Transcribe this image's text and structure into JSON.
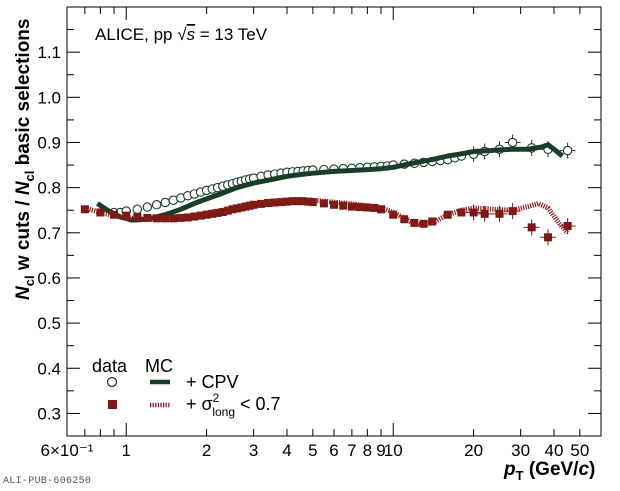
{
  "chart_data": {
    "type": "scatter",
    "annotation": "ALICE, pp  √s = 13 TeV",
    "ylabel": "N_cl w cuts / N_cl basic selections",
    "xlabel": "p_T (GeV/c)",
    "xscale": "log",
    "xlim": [
      0.6,
      60
    ],
    "ylim": [
      0.25,
      1.2
    ],
    "grid": false,
    "legend_placement": "bottom-left",
    "legend_headers": [
      "data",
      "MC"
    ],
    "x_tick_labels": [
      "6×10⁻¹",
      "1",
      "2",
      "3",
      "4",
      "5",
      "6",
      "7",
      "8",
      "9",
      "10",
      "20",
      "30",
      "40",
      "50"
    ],
    "y_tick_labels": [
      "0.3",
      "0.4",
      "0.5",
      "0.6",
      "0.7",
      "0.8",
      "0.9",
      "1.0",
      "1.1"
    ],
    "series": [
      {
        "name": "+ CPV",
        "kind": "data",
        "marker": "open-circle",
        "color": "#1a3d2a",
        "x": [
          0.9,
          0.95,
          1.0,
          1.1,
          1.2,
          1.3,
          1.4,
          1.5,
          1.6,
          1.7,
          1.8,
          1.9,
          2.0,
          2.1,
          2.2,
          2.3,
          2.4,
          2.5,
          2.6,
          2.7,
          2.8,
          2.9,
          3.0,
          3.2,
          3.4,
          3.6,
          3.8,
          4.0,
          4.2,
          4.4,
          4.6,
          4.8,
          5.0,
          5.5,
          6.0,
          6.5,
          7.0,
          7.5,
          8.0,
          8.5,
          9.0,
          9.5,
          10,
          11,
          12,
          13,
          14,
          15,
          16,
          17,
          18,
          20,
          22,
          25,
          28,
          33,
          38,
          45
        ],
        "y": [
          0.745,
          0.745,
          0.748,
          0.752,
          0.757,
          0.762,
          0.767,
          0.772,
          0.777,
          0.782,
          0.786,
          0.79,
          0.794,
          0.797,
          0.8,
          0.803,
          0.806,
          0.809,
          0.812,
          0.814,
          0.817,
          0.819,
          0.821,
          0.825,
          0.828,
          0.83,
          0.832,
          0.834,
          0.835,
          0.836,
          0.837,
          0.838,
          0.839,
          0.84,
          0.841,
          0.842,
          0.843,
          0.844,
          0.845,
          0.846,
          0.847,
          0.848,
          0.85,
          0.852,
          0.854,
          0.856,
          0.858,
          0.86,
          0.862,
          0.866,
          0.87,
          0.874,
          0.88,
          0.885,
          0.9,
          0.888,
          0.885,
          0.882
        ]
      },
      {
        "name": "+ CPV",
        "kind": "MC",
        "line": "solid-thick",
        "color": "#1a3d2a",
        "x": [
          0.78,
          0.85,
          0.95,
          1.05,
          1.2,
          1.4,
          1.6,
          1.8,
          2.0,
          2.3,
          2.6,
          3.0,
          3.5,
          4.0,
          4.5,
          5.0,
          6.0,
          7.0,
          8.0,
          9.0,
          10,
          12,
          14,
          16,
          18,
          20,
          24,
          28,
          32,
          36,
          38,
          40,
          43
        ],
        "y": [
          0.765,
          0.75,
          0.735,
          0.728,
          0.73,
          0.74,
          0.752,
          0.765,
          0.775,
          0.788,
          0.8,
          0.81,
          0.818,
          0.825,
          0.829,
          0.832,
          0.836,
          0.838,
          0.84,
          0.842,
          0.845,
          0.855,
          0.862,
          0.87,
          0.875,
          0.88,
          0.883,
          0.885,
          0.885,
          0.89,
          0.895,
          0.885,
          0.87
        ]
      },
      {
        "name": "+ σ²_long < 0.7",
        "kind": "data",
        "marker": "filled-square",
        "color": "#7a1a16",
        "x": [
          0.7,
          0.8,
          0.9,
          1.0,
          1.1,
          1.2,
          1.3,
          1.4,
          1.5,
          1.6,
          1.7,
          1.8,
          1.9,
          2.0,
          2.1,
          2.2,
          2.3,
          2.4,
          2.5,
          2.6,
          2.7,
          2.8,
          2.9,
          3.0,
          3.2,
          3.4,
          3.6,
          3.8,
          4.0,
          4.2,
          4.4,
          4.6,
          4.8,
          5.0,
          5.5,
          6.0,
          6.5,
          7.0,
          7.5,
          8.0,
          8.5,
          9.0,
          10,
          11,
          12,
          13,
          14,
          16,
          18,
          20,
          22,
          25,
          28,
          33,
          38,
          45
        ],
        "y": [
          0.752,
          0.745,
          0.74,
          0.738,
          0.735,
          0.733,
          0.732,
          0.732,
          0.732,
          0.733,
          0.734,
          0.736,
          0.738,
          0.74,
          0.742,
          0.744,
          0.746,
          0.749,
          0.752,
          0.754,
          0.756,
          0.758,
          0.76,
          0.762,
          0.764,
          0.766,
          0.767,
          0.768,
          0.769,
          0.77,
          0.77,
          0.77,
          0.769,
          0.768,
          0.765,
          0.762,
          0.76,
          0.758,
          0.757,
          0.756,
          0.755,
          0.752,
          0.74,
          0.73,
          0.722,
          0.72,
          0.725,
          0.74,
          0.745,
          0.745,
          0.742,
          0.742,
          0.748,
          0.712,
          0.69,
          0.715
        ]
      },
      {
        "name": "+ σ²_long < 0.7",
        "kind": "MC",
        "line": "dotted-thick",
        "color": "#8b1c18",
        "x": [
          0.7,
          0.8,
          0.9,
          1.0,
          1.2,
          1.4,
          1.6,
          1.8,
          2.0,
          2.3,
          2.6,
          3.0,
          3.5,
          4.0,
          4.5,
          5.0,
          6.0,
          7.0,
          8.0,
          9.0,
          10,
          11,
          12,
          13,
          14,
          16,
          18,
          20,
          24,
          28,
          32,
          35,
          38,
          42,
          45
        ],
        "y": [
          0.755,
          0.745,
          0.738,
          0.733,
          0.73,
          0.73,
          0.733,
          0.738,
          0.744,
          0.75,
          0.757,
          0.763,
          0.768,
          0.772,
          0.773,
          0.772,
          0.768,
          0.764,
          0.76,
          0.756,
          0.745,
          0.732,
          0.72,
          0.718,
          0.722,
          0.74,
          0.75,
          0.755,
          0.752,
          0.75,
          0.758,
          0.765,
          0.755,
          0.72,
          0.7
        ]
      }
    ]
  },
  "legend": {
    "header_data": "data",
    "header_mc": "MC",
    "entries": [
      {
        "label_prefix": "+ CPV",
        "label_sub": "",
        "label_sup": "",
        "label_suffix": ""
      },
      {
        "label_prefix": "+ σ",
        "label_sup": "2",
        "label_sub": "long",
        "label_suffix": " < 0.7"
      }
    ]
  },
  "annotation": {
    "prefix": "ALICE, pp  ",
    "root_symbol": "√",
    "root_var": "s",
    "suffix": " = 13 TeV"
  },
  "y_axis_title": {
    "N1": "N",
    "sub1": "cl",
    "mid": " w cuts / ",
    "N2": "N",
    "sub2": "cl",
    "end": " basic selections"
  },
  "x_axis_title": {
    "p": "p",
    "sub": "T",
    "unit_open": " (GeV/",
    "c": "c",
    "unit_close": ")"
  },
  "publication_id": "ALI-PUB-606250",
  "colors": {
    "cpv": "#1a3d2a",
    "sigma": "#7a1a16",
    "axis": "#000000"
  }
}
